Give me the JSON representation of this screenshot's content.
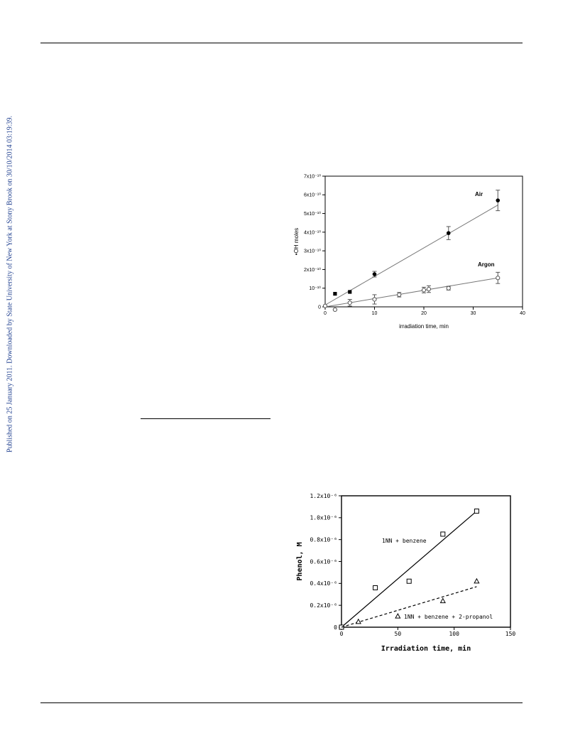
{
  "watermark": "Published on 25 January 2011. Downloaded by State University of New York at Stony Brook on 30/10/2014 03:19:39.",
  "chart_data": [
    {
      "type": "scatter",
      "xlabel": "irradiation time, min",
      "ylabel": "•OH moles",
      "xlim": [
        0,
        40
      ],
      "ylim": [
        0,
        7e-10
      ],
      "x_ticks": [
        "0",
        "10",
        "20",
        "30",
        "40"
      ],
      "y_ticks": [
        "0",
        "10⁻¹⁰",
        "2x10⁻¹⁰",
        "3x10⁻¹⁰",
        "4x10⁻¹⁰",
        "5x10⁻¹⁰",
        "6x10⁻¹⁰",
        "7x10⁻¹⁰"
      ],
      "grid": false,
      "series": [
        {
          "name": "Air",
          "marker": "filled-circle",
          "color": "#000000",
          "points": [
            {
              "x": 2,
              "y": 7e-11,
              "marker": "filled-square"
            },
            {
              "x": 5,
              "y": 8e-11,
              "marker": "filled-square"
            },
            {
              "x": 10,
              "y": 1.75e-10,
              "err": 1.5e-11
            },
            {
              "x": 25,
              "y": 3.95e-10,
              "err": 3.5e-11
            },
            {
              "x": 35,
              "y": 5.7e-10,
              "err": 5.5e-11
            }
          ],
          "fit": [
            [
              0,
              1e-11
            ],
            [
              35,
              5.45e-10
            ]
          ]
        },
        {
          "name": "Argon",
          "marker": "open-circle",
          "color": "#000000",
          "points": [
            {
              "x": 0,
              "y": 5e-12
            },
            {
              "x": 2,
              "y": -1.5e-11
            },
            {
              "x": 5,
              "y": 2.2e-11,
              "err": 1.8e-11
            },
            {
              "x": 10,
              "y": 4e-11,
              "err": 2.5e-11
            },
            {
              "x": 15,
              "y": 6.5e-11,
              "err": 1.2e-11
            },
            {
              "x": 20,
              "y": 9e-11,
              "err": 1.5e-11
            },
            {
              "x": 21,
              "y": 9.5e-11,
              "err": 1.8e-11
            },
            {
              "x": 25,
              "y": 1e-10,
              "err": 1e-11
            },
            {
              "x": 35,
              "y": 1.55e-10,
              "err": 3e-11
            }
          ],
          "fit": [
            [
              0,
              0.0
            ],
            [
              35,
              1.55e-10
            ]
          ]
        }
      ]
    },
    {
      "type": "scatter",
      "xlabel": "Irradiation time, min",
      "ylabel": "Phenol, M",
      "xlim": [
        0,
        150
      ],
      "ylim": [
        0,
        1.2e-06
      ],
      "x_ticks": [
        "0",
        "50",
        "100",
        "150"
      ],
      "y_ticks": [
        "0",
        "0.2x10⁻⁶",
        "0.4x10⁻⁶",
        "0.6x10⁻⁶",
        "0.8x10⁻⁶",
        "1.0x10⁻⁶",
        "1.2x10⁻⁶"
      ],
      "grid": false,
      "series": [
        {
          "name": "1NN + benzene",
          "marker": "open-square",
          "line": "solid",
          "points": [
            {
              "x": 0,
              "y": 0
            },
            {
              "x": 30,
              "y": 3.6e-07
            },
            {
              "x": 60,
              "y": 4.2e-07
            },
            {
              "x": 90,
              "y": 8.5e-07
            },
            {
              "x": 120,
              "y": 1.06e-06
            }
          ],
          "fit": [
            [
              0,
              0
            ],
            [
              120,
              1.06e-06
            ]
          ]
        },
        {
          "name": "1NN + benzene + 2-propanol",
          "marker": "open-triangle",
          "line": "dashed",
          "points": [
            {
              "x": 15,
              "y": 5e-08
            },
            {
              "x": 50,
              "y": 1e-07
            },
            {
              "x": 90,
              "y": 2.4e-07
            },
            {
              "x": 120,
              "y": 4.2e-07
            }
          ],
          "fit": [
            [
              0,
              0
            ],
            [
              120,
              3.7e-07
            ]
          ]
        }
      ]
    }
  ]
}
